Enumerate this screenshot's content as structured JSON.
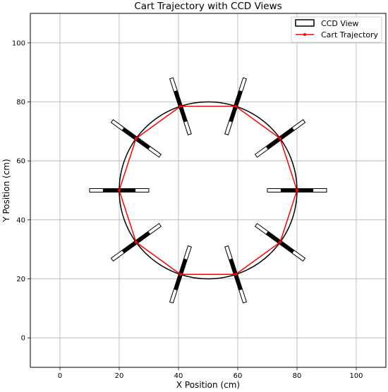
{
  "chart_data": {
    "type": "scatter",
    "title": "Cart Trajectory with CCD Views",
    "xlabel": "X Position (cm)",
    "ylabel": "Y Position (cm)",
    "xlim": [
      -10,
      110
    ],
    "ylim": [
      -10,
      110
    ],
    "x_ticks": [
      0,
      20,
      40,
      60,
      80,
      100
    ],
    "y_ticks": [
      0,
      20,
      40,
      60,
      80,
      100
    ],
    "grid": true,
    "legend_position": "top-right",
    "circle": {
      "center": [
        50,
        50
      ],
      "radius": 30
    },
    "series": [
      {
        "name": "CCD View",
        "ccd_views": [
          {
            "center": [
              80,
              50
            ],
            "angle_deg": 0
          },
          {
            "center": [
              74.3,
              67.6
            ],
            "angle_deg": 36
          },
          {
            "center": [
              59.3,
              78.5
            ],
            "angle_deg": 72
          },
          {
            "center": [
              40.7,
              78.5
            ],
            "angle_deg": 108
          },
          {
            "center": [
              25.7,
              67.6
            ],
            "angle_deg": 144
          },
          {
            "center": [
              20,
              50
            ],
            "angle_deg": 180
          },
          {
            "center": [
              25.7,
              32.4
            ],
            "angle_deg": 216
          },
          {
            "center": [
              40.7,
              21.5
            ],
            "angle_deg": 252
          },
          {
            "center": [
              59.3,
              21.5
            ],
            "angle_deg": 288
          },
          {
            "center": [
              74.3,
              32.4
            ],
            "angle_deg": 324
          }
        ],
        "ccd_length": 20
      },
      {
        "name": "Cart Trajectory",
        "color": "#ff0000",
        "x": [
          80,
          74.3,
          59.3,
          40.7,
          25.7,
          20,
          25.7,
          40.7,
          59.3,
          74.3,
          80
        ],
        "y": [
          50,
          67.6,
          78.5,
          78.5,
          67.6,
          50,
          32.4,
          21.5,
          21.5,
          32.4,
          50
        ]
      }
    ]
  }
}
